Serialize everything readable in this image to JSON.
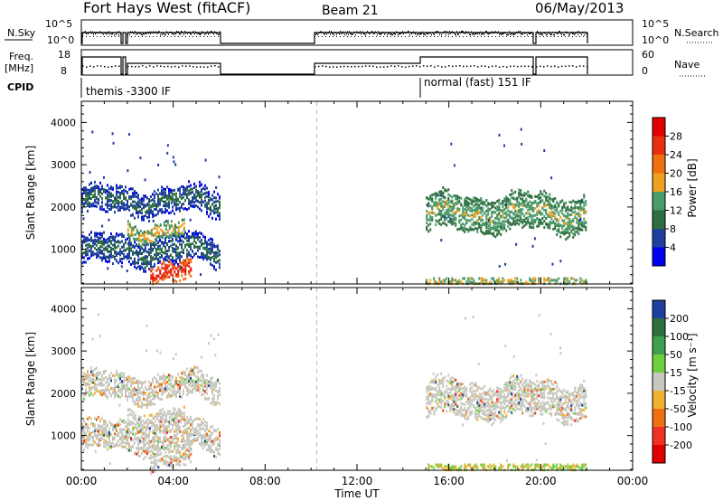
{
  "header": {
    "title": "Fort Hays West (fitACF)",
    "beam": "Beam 21",
    "date": "06/May/2013"
  },
  "summary_panels": {
    "nsky_label": "N.Sky",
    "nsky_ticks": [
      "10^5",
      "10^0"
    ],
    "nsearch_label": "N.Search",
    "freq_label_line1": "Freq.",
    "freq_label_line2": "[MHz]",
    "freq_ticks": [
      "18",
      "8"
    ],
    "nave_ticks": [
      "60",
      "0"
    ],
    "nave_label": "Nave",
    "cpid_label": "CPID",
    "cpid_modes": [
      {
        "text": "themis -3300 IF",
        "start_hour": 0.0
      },
      {
        "text": "normal (fast) 151 IF",
        "start_hour": 15.0
      }
    ]
  },
  "chart_data": [
    {
      "type": "heatmap",
      "name": "power",
      "ylabel": "Slant Range [km]",
      "xlabel": "Time UT",
      "xlim": [
        0,
        24
      ],
      "ylim": [
        180,
        4500
      ],
      "x_ticks": [
        "00:00",
        "04:00",
        "08:00",
        "12:00",
        "16:00",
        "20:00",
        "00:00"
      ],
      "y_ticks": [
        1000,
        2000,
        3000,
        4000
      ],
      "colorbar": {
        "label": "Power [dB]",
        "ticks": [
          4,
          8,
          12,
          16,
          20,
          24,
          28
        ],
        "colors": [
          "#0000ee",
          "#1f3f9f",
          "#2e6e3e",
          "#4a9a6a",
          "#f0a020",
          "#f07010",
          "#e83010",
          "#e00000"
        ]
      },
      "gaps_hours": [
        [
          6.0,
          15.0
        ]
      ],
      "data_gap_marker_hour": 10.25,
      "features": [
        {
          "name": "band",
          "start_hour": 0.0,
          "end_hour": 6.0,
          "range_km": [
            1900,
            2450
          ],
          "power_db": 6
        },
        {
          "name": "band",
          "start_hour": 0.0,
          "end_hour": 6.0,
          "range_km": [
            700,
            1300
          ],
          "power_db": 6
        },
        {
          "name": "band",
          "start_hour": 2.0,
          "end_hour": 4.5,
          "range_km": [
            1300,
            1650
          ],
          "power_db": 14
        },
        {
          "name": "band",
          "start_hour": 3.0,
          "end_hour": 4.8,
          "range_km": [
            300,
            700
          ],
          "power_db": 24
        },
        {
          "name": "band",
          "start_hour": 15.0,
          "end_hour": 22.0,
          "range_km": [
            1500,
            2300
          ],
          "power_db": 12
        }
      ]
    },
    {
      "type": "heatmap",
      "name": "velocity",
      "ylabel": "Slant Range [km]",
      "xlabel": "Time UT",
      "xlim": [
        0,
        24
      ],
      "ylim": [
        180,
        4500
      ],
      "x_ticks": [
        "00:00",
        "04:00",
        "08:00",
        "12:00",
        "16:00",
        "20:00",
        "00:00"
      ],
      "y_ticks": [
        1000,
        2000,
        3000,
        4000
      ],
      "colorbar": {
        "label": "Velocity [m s⁻¹]",
        "ticks": [
          200,
          100,
          50,
          15,
          -15,
          -50,
          -100,
          -200
        ],
        "colors": [
          "#1f3fa0",
          "#2e6f3e",
          "#3f9f4f",
          "#6fcf3f",
          "#c8c8c0",
          "#f0b030",
          "#f07010",
          "#f03020",
          "#e00000"
        ]
      },
      "gaps_hours": [
        [
          6.0,
          15.0
        ]
      ],
      "data_gap_marker_hour": 10.25
    }
  ]
}
